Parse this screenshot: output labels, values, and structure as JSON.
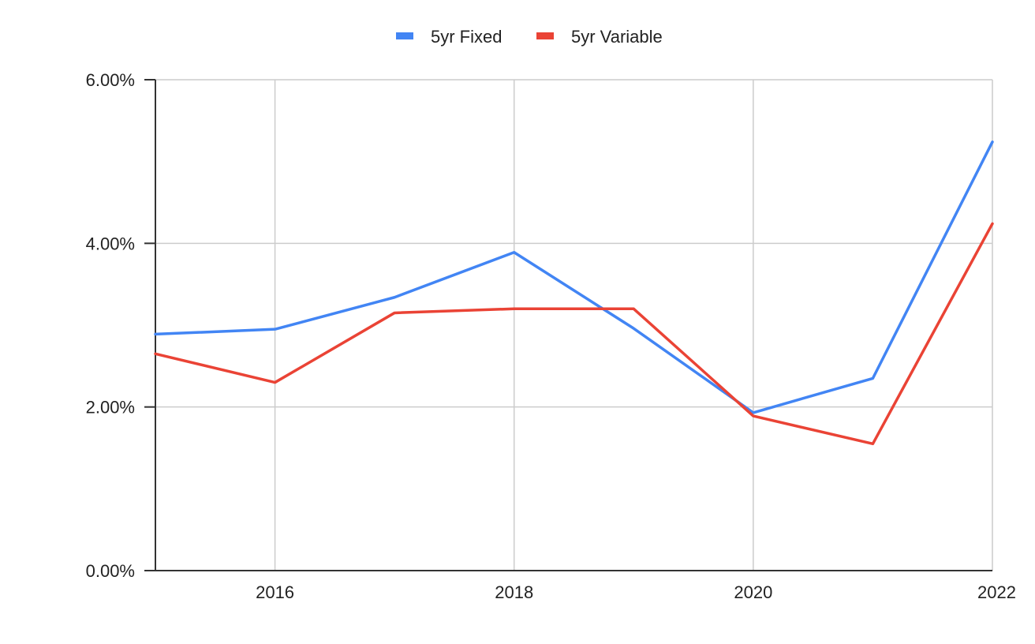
{
  "chart_data": {
    "type": "line",
    "title": "",
    "xlabel": "",
    "ylabel": "",
    "x": [
      2015,
      2016,
      2017,
      2018,
      2019,
      2020,
      2021,
      2022
    ],
    "xlim": [
      2015,
      2022
    ],
    "x_ticks": [
      2016,
      2018,
      2020,
      2022
    ],
    "x_tick_labels": [
      "2016",
      "2018",
      "2020",
      "2022"
    ],
    "ylim": [
      0,
      6
    ],
    "y_ticks": [
      0,
      2,
      4,
      6
    ],
    "y_tick_labels": [
      "0.00%",
      "2.00%",
      "4.00%",
      "6.00%"
    ],
    "y_unit": "%",
    "grid": true,
    "legend_position": "top",
    "series": [
      {
        "name": "5yr Fixed",
        "color": "#4285f4",
        "values": [
          2.89,
          2.95,
          3.34,
          3.89,
          2.96,
          1.93,
          2.35,
          5.24
        ]
      },
      {
        "name": "5yr Variable",
        "color": "#ea4335",
        "values": [
          2.65,
          2.3,
          3.15,
          3.2,
          3.2,
          1.89,
          1.55,
          4.24
        ]
      }
    ]
  }
}
